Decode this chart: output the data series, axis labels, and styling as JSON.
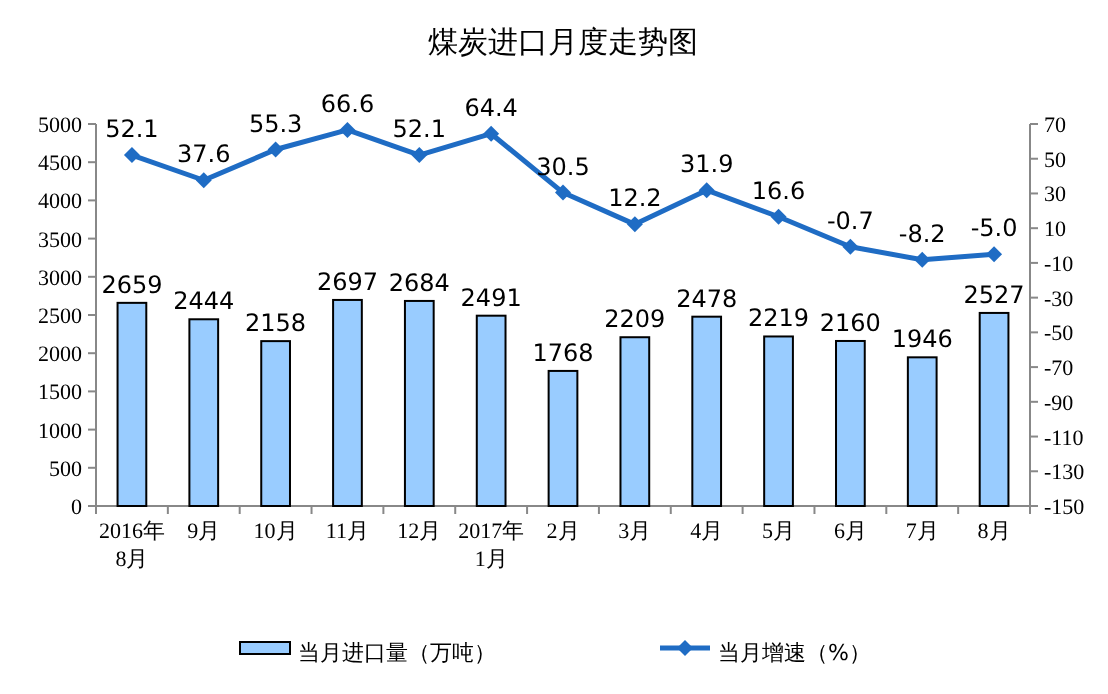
{
  "chart_data": {
    "type": "bar",
    "title": "煤炭进口月度走势图",
    "categories": [
      "2016年\n8月",
      "9月",
      "10月",
      "11月",
      "12月",
      "2017年\n1月",
      "2月",
      "3月",
      "4月",
      "5月",
      "6月",
      "7月",
      "8月"
    ],
    "series": [
      {
        "name": "当月进口量（万吨）",
        "color": "#99ccff",
        "values": [
          2659,
          2444,
          2158,
          2697,
          2684,
          2491,
          1768,
          2209,
          2478,
          2219,
          2160,
          1946,
          2527
        ]
      },
      {
        "name": "当月增速（%）",
        "type": "line",
        "axis": "y2",
        "color": "#1f6cc4",
        "marker": "diamond",
        "values": [
          52.1,
          37.6,
          55.3,
          66.6,
          52.1,
          64.4,
          30.5,
          12.2,
          31.9,
          16.6,
          -0.7,
          -8.2,
          -5.0
        ],
        "value_labels": [
          "52.1",
          "37.6",
          "55.3",
          "66.6",
          "52.1",
          "64.4",
          "30.5",
          "12.2",
          "31.9",
          "16.6",
          "-0.7",
          "-8.2",
          "-5.0"
        ]
      }
    ],
    "ylim": [
      0,
      5000
    ],
    "yticks": [
      0,
      500,
      1000,
      1500,
      2000,
      2500,
      3000,
      3500,
      4000,
      4500,
      5000
    ],
    "y2lim": [
      -150,
      70
    ],
    "y2ticks": [
      -150,
      -130,
      -110,
      -90,
      -70,
      -50,
      -30,
      -10,
      10,
      30,
      50,
      70
    ],
    "data_labels": true,
    "legend": "bottom",
    "grid": false
  }
}
